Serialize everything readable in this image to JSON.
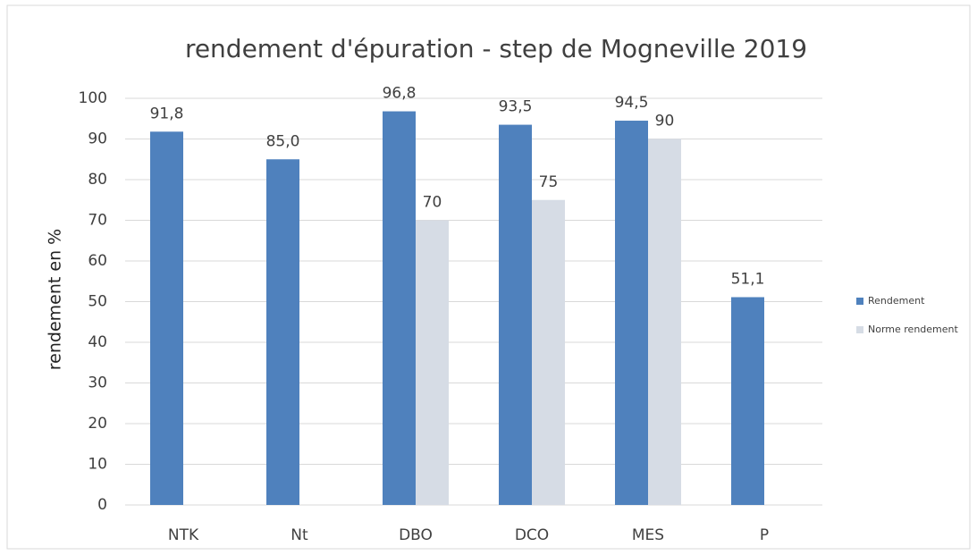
{
  "chart_data": {
    "type": "bar",
    "title": "rendement d'épuration - step de Mogneville 2019",
    "y_label": "rendement en %",
    "categories": [
      "NTK",
      "Nt",
      "DBO",
      "DCO",
      "MES",
      "P"
    ],
    "series": [
      {
        "name": "Rendement",
        "color": "#4f81bd",
        "values": [
          91.8,
          85.0,
          96.8,
          93.5,
          94.5,
          51.1
        ],
        "value_labels": [
          "91,8",
          "85,0",
          "96,8",
          "93,5",
          "94,5",
          "51,1"
        ]
      },
      {
        "name": "Norme rendement",
        "color": "#d6dce5",
        "values": [
          null,
          null,
          70,
          75,
          90,
          null
        ]
      }
    ],
    "ylim": [
      0,
      100
    ],
    "yticks": [
      0,
      10,
      20,
      30,
      40,
      50,
      60,
      70,
      80,
      90,
      100
    ],
    "grid": true,
    "legend": "right"
  }
}
